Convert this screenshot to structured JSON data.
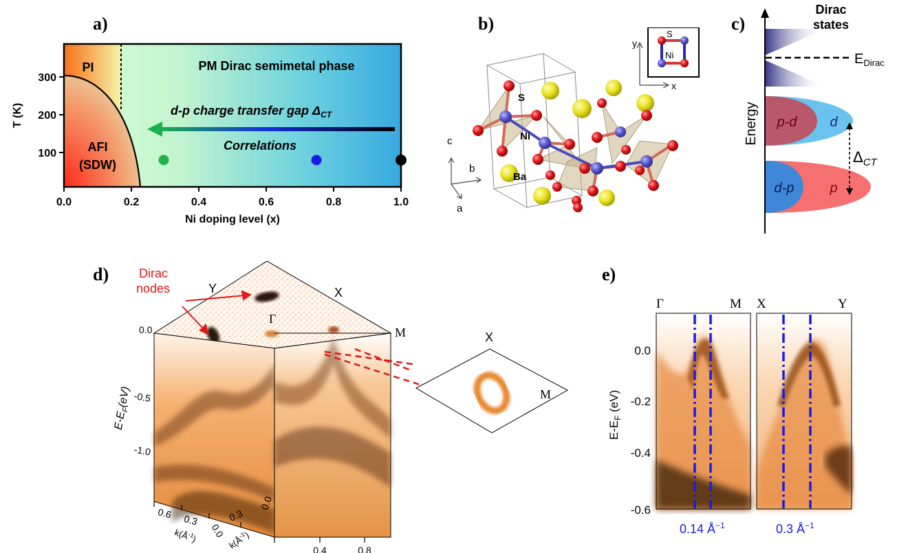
{
  "panels": {
    "a": {
      "label": "a)",
      "ylabel": "T (K)",
      "xlabel": "Ni doping level (x)",
      "xticks": [
        "0.0",
        "0.2",
        "0.4",
        "0.6",
        "0.8",
        "1.0"
      ],
      "yticks": [
        "100",
        "200",
        "300"
      ],
      "region_pi": "PI",
      "region_afi_1": "AFI",
      "region_afi_2": "(SDW)",
      "region_pm": "PM Dirac semimetal phase",
      "arrow_text": "d-p charge transfer gap Δ",
      "arrow_text_sub": "CT",
      "correlations": "Correlations",
      "colors": {
        "green_point": "#22b14c",
        "blue_point": "#1a1ae6",
        "black_point": "#000000"
      }
    },
    "b": {
      "label": "b)",
      "atom_s": "S",
      "atom_ni": "Ni",
      "atom_ba": "Ba",
      "axis_a": "a",
      "axis_b": "b",
      "axis_c": "c",
      "inset_s": "S",
      "inset_ni": "Ni",
      "inset_x": "x",
      "inset_y": "y"
    },
    "c": {
      "label": "c)",
      "dirac_1": "Dirac",
      "dirac_2": "states",
      "edirac": "E",
      "edirac_sub": "Dirac",
      "energy": "Energy",
      "pd": "p-d",
      "d": "d",
      "dp": "d-p",
      "p": "p",
      "gap": "Δ",
      "gap_sub": "CT"
    },
    "d": {
      "label": "d)",
      "dirac_nodes_1": "Dirac",
      "dirac_nodes_2": "nodes",
      "sym_y": "Y",
      "sym_gamma": "Γ",
      "sym_x": "X",
      "sym_m": "M",
      "inset_x": "X",
      "inset_m": "M",
      "zero_label": "0.0",
      "ylabel": "E-E",
      "ylabel_sub": "F",
      "ylabel_tail": "(eV)",
      "yticks": [
        "-0.5",
        "-1.0"
      ],
      "kticks_right": [
        "0.0",
        "0.4",
        "0.8"
      ],
      "kticks_mid": [
        "0.0",
        "0.3"
      ],
      "kticks_left": [
        "0.6",
        "0.3",
        "0.0"
      ],
      "klabel": "k(Å",
      "klabel_sup": "-1",
      "klabel_tail": ")"
    },
    "e": {
      "label": "e)",
      "sym_gamma": "Γ",
      "sym_m": "M",
      "sym_x": "X",
      "sym_y": "Y",
      "yticks": [
        "0.0",
        "-0.2",
        "-0.4",
        "-0.6"
      ],
      "ylabel": "E-E",
      "ylabel_sub": "F",
      "ylabel_tail": " (eV)",
      "width1": "0.14 Å",
      "width2": "0.3 Å",
      "width_sup": "−1",
      "colors": {
        "guide": "#1a1ae6"
      }
    }
  }
}
